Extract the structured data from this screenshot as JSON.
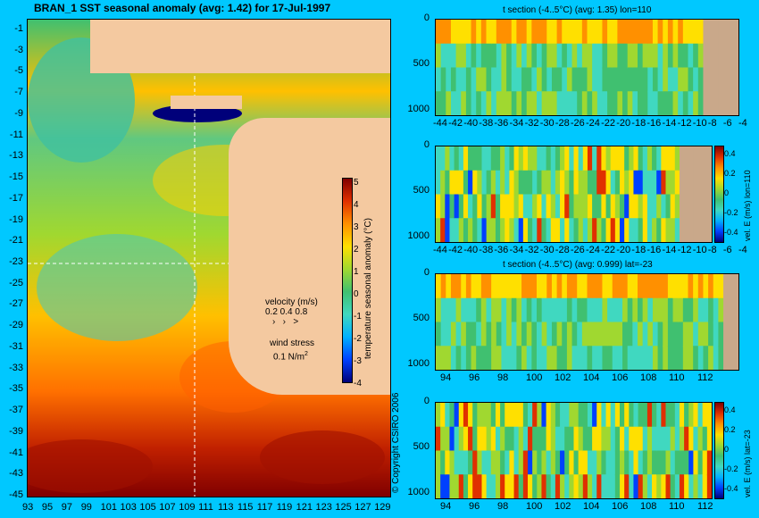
{
  "map": {
    "title": "BRAN_1  SST seasonal anomaly  (avg: 1.42)  for 17-Jul-1997",
    "y_ticks": [
      "-1",
      "-3",
      "-5",
      "-7",
      "-9",
      "-11",
      "-13",
      "-15",
      "-17",
      "-19",
      "-21",
      "-23",
      "-25",
      "-27",
      "-29",
      "-31",
      "-33",
      "-35",
      "-37",
      "-39",
      "-41",
      "-43",
      "-45"
    ],
    "x_ticks": [
      "93",
      "95",
      "97",
      "99",
      "101",
      "103",
      "105",
      "107",
      "109",
      "111",
      "113",
      "115",
      "117",
      "119",
      "121",
      "123",
      "125",
      "127",
      "129"
    ],
    "colorbar_label": "temperature seasonal anomaly (°C)",
    "colorbar_ticks": [
      "5",
      "4",
      "3",
      "2",
      "1",
      "0",
      "-1",
      "-2",
      "-3",
      "-4"
    ],
    "velocity_label": "velocity (m/s)",
    "velocity_scale": "0.2 0.4 0.8",
    "wind_label": "wind stress",
    "wind_scale": "0.1 N/m",
    "wind_scale_exp": "2",
    "copyright": "© Copyright CSIRO 2006"
  },
  "panels": [
    {
      "title": "t section (-4..5°C)  (avg: 1.35) lon=110",
      "y_ticks": [
        "0",
        "500",
        "1000"
      ],
      "x_ticks": [
        "-44",
        "-42",
        "-40",
        "-38",
        "-36",
        "-34",
        "-32",
        "-30",
        "-28",
        "-26",
        "-24",
        "-22",
        "-20",
        "-18",
        "-16",
        "-14",
        "-12",
        "-10",
        "-8",
        "-6",
        "-4"
      ],
      "colorbar": false
    },
    {
      "title": "",
      "y_ticks": [
        "0",
        "500",
        "1000"
      ],
      "x_ticks": [
        "-44",
        "-42",
        "-40",
        "-38",
        "-36",
        "-34",
        "-32",
        "-30",
        "-28",
        "-26",
        "-24",
        "-22",
        "-20",
        "-18",
        "-16",
        "-14",
        "-12",
        "-10",
        "-8",
        "-6",
        "-4"
      ],
      "colorbar": true,
      "colorbar_label": "vel. E (m/s) lon=110",
      "colorbar_ticks": [
        "0.4",
        "0.2",
        "0",
        "-0.2",
        "-0.4"
      ]
    },
    {
      "title": "t section (-4..5°C)  (avg: 0.999) lat=-23",
      "y_ticks": [
        "0",
        "500",
        "1000"
      ],
      "x_ticks": [
        "94",
        "96",
        "98",
        "100",
        "102",
        "104",
        "106",
        "108",
        "110",
        "112"
      ],
      "colorbar": false
    },
    {
      "title": "",
      "y_ticks": [
        "0",
        "500",
        "1000"
      ],
      "x_ticks": [
        "94",
        "96",
        "98",
        "100",
        "102",
        "104",
        "106",
        "108",
        "110",
        "112"
      ],
      "colorbar": true,
      "colorbar_label": "vel. E (m/s) lat=-23",
      "colorbar_ticks": [
        "0.4",
        "0.2",
        "0",
        "-0.2",
        "-0.4"
      ]
    }
  ],
  "colors": {
    "background": "#00c8ff",
    "land": "#f4c9a0",
    "section_land": "#c9a88a",
    "palette": [
      "#00007a",
      "#0040ff",
      "#00b0ff",
      "#40d8c0",
      "#40c070",
      "#a0d830",
      "#ffe000",
      "#ff9000",
      "#e03000",
      "#800000"
    ]
  },
  "chart_data": [
    {
      "type": "heatmap",
      "title": "BRAN_1  SST seasonal anomaly  (avg: 1.42)  for 17-Jul-1997",
      "xlim": [
        93,
        130
      ],
      "ylim": [
        -45,
        0
      ],
      "color_range": [
        -4,
        5
      ],
      "colorbar_label": "temperature seasonal anomaly (°C)"
    },
    {
      "type": "heatmap",
      "title": "t section (-4..5°C)  (avg: 1.35) lon=110",
      "xlim": [
        -45,
        -3
      ],
      "ylim": [
        1050,
        0
      ]
    },
    {
      "type": "heatmap",
      "xlim": [
        -45,
        -3
      ],
      "ylim": [
        1050,
        0
      ],
      "color_range": [
        -0.5,
        0.5
      ],
      "colorbar_label": "vel. E (m/s) lon=110"
    },
    {
      "type": "heatmap",
      "title": "t section (-4..5°C)  (avg: 0.999) lat=-23",
      "xlim": [
        93,
        114
      ],
      "ylim": [
        1050,
        0
      ]
    },
    {
      "type": "heatmap",
      "xlim": [
        93,
        114
      ],
      "ylim": [
        1050,
        0
      ],
      "color_range": [
        -0.5,
        0.5
      ],
      "colorbar_label": "vel. E (m/s) lat=-23"
    }
  ]
}
